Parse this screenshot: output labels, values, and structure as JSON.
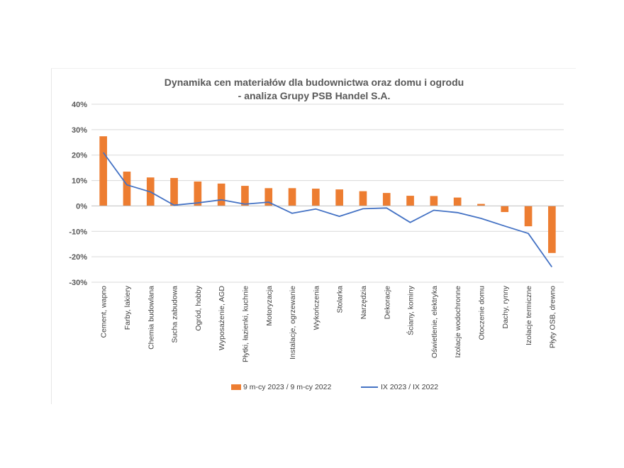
{
  "chart_data": {
    "type": "bar",
    "title": [
      "Dynamika cen materiałów dla budownictwa oraz domu i ogrodu",
      "- analiza Grupy PSB Handel S.A."
    ],
    "categories": [
      "Cement, wapno",
      "Farby, lakiery",
      "Chemia budowlana",
      "Sucha zabudowa",
      "Ogród, hobby",
      "Wyposażenie, AGD",
      "Płytki, łazienki, kuchnie",
      "Motoryzacja",
      "Instalacje, ogrzewanie",
      "Wykończenia",
      "Stolarka",
      "Narzędzia",
      "Dekoracje",
      "Ściany, kominy",
      "Oświetlenie, elektryka",
      "Izolacje wodochronne",
      "Otoczenie domu",
      "Dachy, rynny",
      "Izolacje termiczne",
      "Płyty OSB, drewno"
    ],
    "series": [
      {
        "name": "9 m-cy 2023 / 9 m-cy 2022",
        "kind": "bar",
        "color": "#ED7D31",
        "values": [
          27.4,
          13.5,
          11.2,
          11.0,
          9.6,
          8.8,
          7.9,
          7.0,
          7.0,
          6.8,
          6.5,
          5.8,
          5.1,
          4.0,
          3.9,
          3.3,
          0.8,
          -2.4,
          -8.0,
          -18.5
        ]
      },
      {
        "name": "IX 2023 / IX 2022",
        "kind": "line",
        "color": "#4472C4",
        "values": [
          21.0,
          8.3,
          5.5,
          0.3,
          1.2,
          2.4,
          0.7,
          1.5,
          -2.9,
          -1.2,
          -4.1,
          -1.1,
          -0.8,
          -6.5,
          -1.7,
          -2.6,
          -4.9,
          -7.9,
          -10.8,
          -24.0
        ]
      }
    ],
    "yticks": [
      "40%",
      "30%",
      "20%",
      "10%",
      "0%",
      "-10%",
      "-20%",
      "-30%"
    ],
    "ylim": [
      -30,
      40
    ],
    "grid": true,
    "legend_position": "bottom"
  }
}
